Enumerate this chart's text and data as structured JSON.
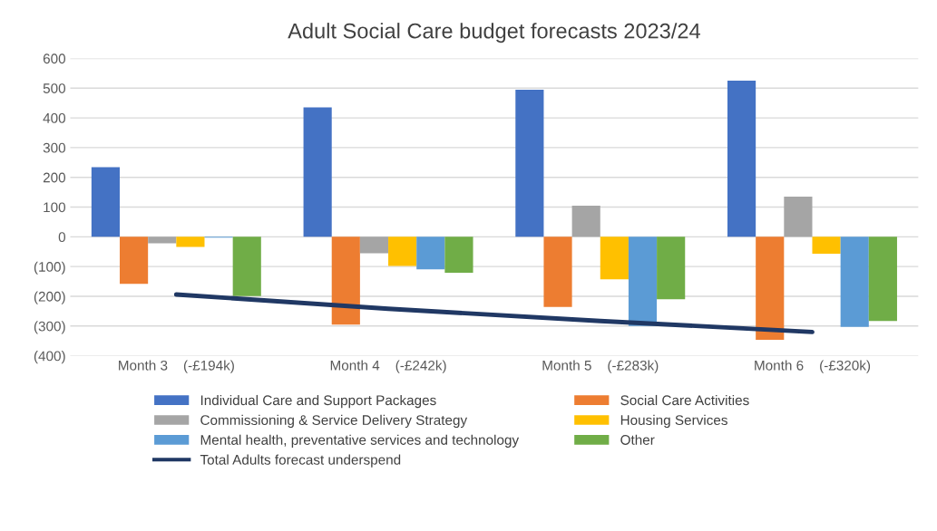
{
  "chart_data": {
    "type": "bar",
    "title": "Adult Social Care budget forecasts 2023/24",
    "categories": [
      "Month 3    (-£194k)",
      "Month 4    (-£242k)",
      "Month 5    (-£283k)",
      "Month 6    (-£320k)"
    ],
    "series": [
      {
        "name": "Individual Care and Support Packages",
        "color": "#4472c4",
        "values": [
          234,
          435,
          495,
          525
        ]
      },
      {
        "name": "Social Care Activities",
        "color": "#ed7d31",
        "values": [
          -158,
          -295,
          -236,
          -346
        ]
      },
      {
        "name": "Commissioning & Service Delivery Strategy",
        "color": "#a5a5a5",
        "values": [
          -22,
          -55,
          105,
          135
        ]
      },
      {
        "name": "Housing Services",
        "color": "#ffc000",
        "values": [
          -34,
          -98,
          -143,
          -57
        ]
      },
      {
        "name": "Mental health, preventative services and technology",
        "color": "#5b9bd5",
        "values": [
          -3,
          -109,
          -300,
          -303
        ]
      },
      {
        "name": "Other",
        "color": "#70ad47",
        "values": [
          -199,
          -121,
          -210,
          -283
        ]
      },
      {
        "name": "Total Adults forecast underspend",
        "type": "line",
        "color": "#203864",
        "values": [
          -194,
          -242,
          -283,
          -320
        ]
      }
    ],
    "ylim": [
      -400,
      600
    ],
    "yticks": [
      600,
      500,
      400,
      300,
      200,
      100,
      0,
      {
        "value": -100,
        "label": "(100)"
      },
      {
        "value": -200,
        "label": "(200)"
      },
      {
        "value": -300,
        "label": "(300)"
      },
      {
        "value": -400,
        "label": "(400)"
      }
    ],
    "grid": "y",
    "legend": "bottom",
    "marker": "none",
    "line_style": "solid"
  }
}
